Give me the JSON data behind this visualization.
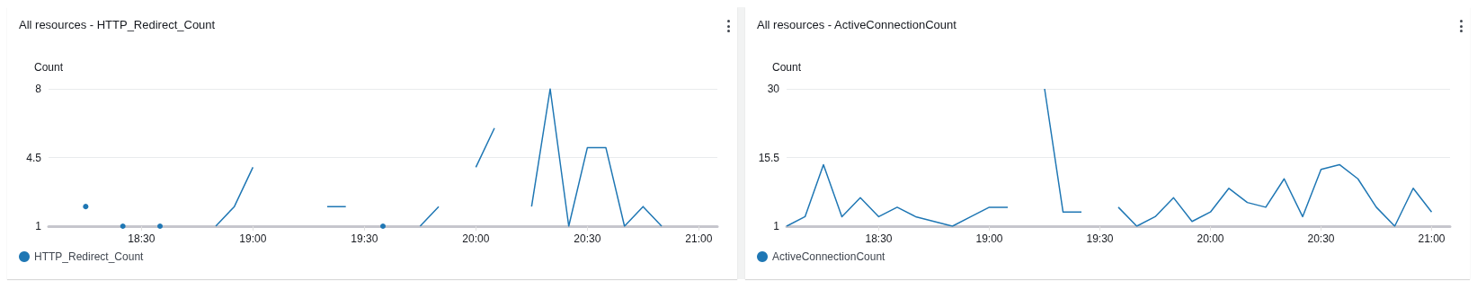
{
  "chart_data": [
    {
      "type": "line",
      "title": "All resources - HTTP_Redirect_Count",
      "ylabel": "Count",
      "x": [
        18.25,
        18.3333,
        18.4167,
        18.5,
        18.5833,
        18.6667,
        18.75,
        18.8333,
        18.9167,
        19,
        19.0833,
        19.1667,
        19.25,
        19.3333,
        19.4167,
        19.5,
        19.5833,
        19.6667,
        19.75,
        19.8333,
        19.9167,
        20,
        20.0833,
        20.1667,
        20.25,
        20.3333,
        20.4167,
        20.5,
        20.5833,
        20.6667,
        20.75,
        20.8333
      ],
      "series": [
        {
          "name": "HTTP_Redirect_Count",
          "color": "#1f77b4",
          "values": [
            2,
            null,
            1,
            null,
            1,
            null,
            null,
            1,
            2,
            4,
            null,
            null,
            null,
            2,
            2,
            null,
            1,
            null,
            1,
            2,
            null,
            4,
            6,
            null,
            2,
            8,
            1,
            5,
            5,
            1,
            2,
            1
          ]
        }
      ],
      "xlim": [
        18.0833,
        21.0833
      ],
      "xticks": [
        {
          "value": 18.5,
          "label": "18:30"
        },
        {
          "value": 19,
          "label": "19:00"
        },
        {
          "value": 19.5,
          "label": "19:30"
        },
        {
          "value": 20,
          "label": "20:00"
        },
        {
          "value": 20.5,
          "label": "20:30"
        },
        {
          "value": 21,
          "label": "21:00"
        }
      ],
      "ylim": [
        1,
        8
      ],
      "yticks": [
        1,
        4.5,
        8
      ],
      "grid": "y",
      "legend": "bottom left"
    },
    {
      "type": "line",
      "title": "All resources - ActiveConnectionCount",
      "ylabel": "Count",
      "x": [
        18.0833,
        18.1667,
        18.25,
        18.3333,
        18.4167,
        18.5,
        18.5833,
        18.6667,
        18.75,
        18.8333,
        18.9167,
        19,
        19.0833,
        19.1667,
        19.25,
        19.3333,
        19.4167,
        19.5,
        19.5833,
        19.6667,
        19.75,
        19.8333,
        19.9167,
        20,
        20.0833,
        20.1667,
        20.25,
        20.3333,
        20.4167,
        20.5,
        20.5833,
        20.6667,
        20.75,
        20.8333,
        20.9167,
        21
      ],
      "series": [
        {
          "name": "ActiveConnectionCount",
          "color": "#1f77b4",
          "values": [
            1,
            3,
            14,
            3,
            7,
            3,
            5,
            3,
            2,
            1,
            3,
            5,
            5,
            null,
            30,
            4,
            4,
            null,
            5,
            1,
            3,
            7,
            2,
            4,
            9,
            6,
            5,
            11,
            3,
            13,
            14,
            11,
            5,
            1,
            9,
            4
          ]
        }
      ],
      "xlim": [
        18.0833,
        21.0833
      ],
      "xticks": [
        {
          "value": 18.5,
          "label": "18:30"
        },
        {
          "value": 19,
          "label": "19:00"
        },
        {
          "value": 19.5,
          "label": "19:30"
        },
        {
          "value": 20,
          "label": "20:00"
        },
        {
          "value": 20.5,
          "label": "20:30"
        },
        {
          "value": 21,
          "label": "21:00"
        }
      ],
      "ylim": [
        1,
        30
      ],
      "yticks": [
        1,
        15.5,
        30
      ],
      "grid": "y",
      "legend": "bottom left"
    }
  ]
}
